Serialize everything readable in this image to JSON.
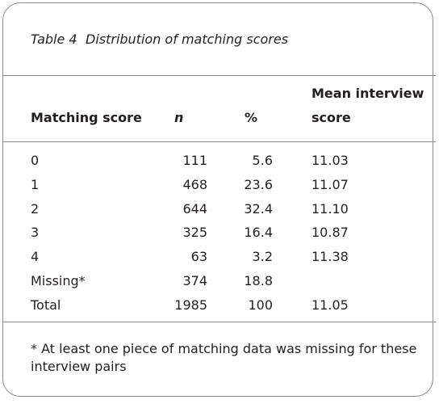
{
  "table": {
    "label": "Table 4",
    "title": "Distribution of matching scores",
    "header": [
      "Matching score",
      "n",
      "%",
      "Mean interview score"
    ],
    "rows": [
      [
        "0",
        "111",
        "5.6",
        "11.03"
      ],
      [
        "1",
        "468",
        "23.6",
        "11.07"
      ],
      [
        "2",
        "644",
        "32.4",
        "11.10"
      ],
      [
        "3",
        "325",
        "16.4",
        "10.87"
      ],
      [
        "4",
        "63",
        "3.2",
        "11.38"
      ],
      [
        "Missing*",
        "374",
        "18.8",
        null
      ],
      [
        "Total",
        "1985",
        "100",
        "11.05"
      ]
    ],
    "footnote": "* At least one piece of matching data was missing for these interview pairs"
  }
}
